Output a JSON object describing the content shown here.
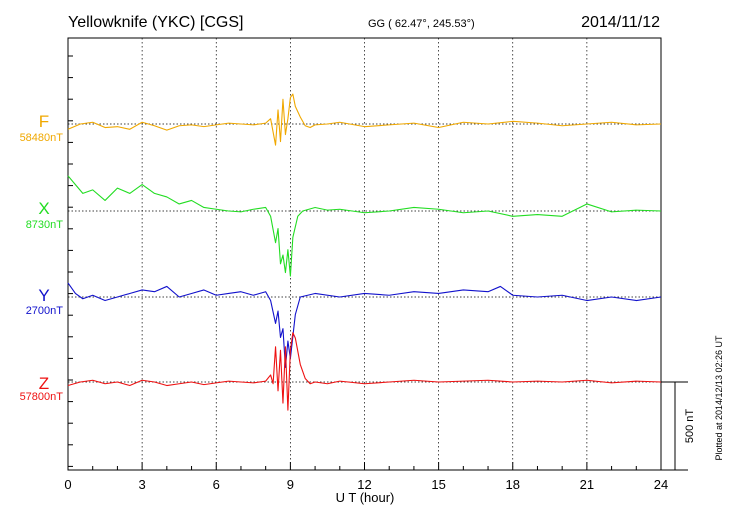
{
  "header": {
    "station": "Yellowknife (YKC)  [CGS]",
    "coords": "GG ( 62.47°, 245.53°)",
    "date": "2014/11/12"
  },
  "side_note": "Plotted at 2014/12/13 02:26 UT",
  "scale_bar": {
    "label": "500 nT",
    "value_nT": 500
  },
  "chart_data": {
    "type": "line",
    "xlabel": "U T (hour)",
    "xlim": [
      0,
      24
    ],
    "xticks": [
      "0",
      "3",
      "6",
      "9",
      "12",
      "15",
      "18",
      "21",
      "24"
    ],
    "grid": true,
    "colors": {
      "F": "#f0a800",
      "X": "#22dd22",
      "Y": "#1111cc",
      "Z": "#ee1111"
    },
    "series": [
      {
        "name": "F",
        "baseline_label": "58480nT",
        "baseline": 58480,
        "x": [
          0,
          0.5,
          1,
          1.5,
          2,
          2.5,
          3,
          3.5,
          4,
          4.5,
          5,
          5.5,
          6,
          6.5,
          7,
          7.5,
          8,
          8.2,
          8.4,
          8.5,
          8.6,
          8.7,
          8.8,
          8.9,
          9,
          9.1,
          9.2,
          9.4,
          9.6,
          9.8,
          10,
          10.5,
          11,
          12,
          13,
          14,
          15,
          16,
          17,
          18,
          19,
          20,
          21,
          22,
          23,
          24
        ],
        "values": [
          -30,
          0,
          10,
          -20,
          -15,
          -30,
          10,
          -10,
          -35,
          -10,
          -5,
          -15,
          -5,
          5,
          0,
          -5,
          5,
          30,
          -120,
          80,
          -100,
          140,
          -60,
          30,
          150,
          170,
          100,
          40,
          -10,
          -20,
          -5,
          0,
          10,
          -15,
          -5,
          5,
          -20,
          10,
          0,
          15,
          5,
          -10,
          0,
          10,
          -5,
          0
        ]
      },
      {
        "name": "X",
        "baseline_label": "8730nT",
        "baseline": 8730,
        "x": [
          0,
          0.3,
          0.6,
          1,
          1.5,
          2,
          2.5,
          3,
          3.5,
          4,
          4.5,
          5,
          5.5,
          6,
          6.5,
          7,
          7.5,
          8,
          8.2,
          8.4,
          8.5,
          8.6,
          8.7,
          8.8,
          8.9,
          9,
          9.1,
          9.3,
          9.5,
          10,
          10.5,
          11,
          12,
          13,
          14,
          15,
          16,
          17,
          18,
          19,
          20,
          21,
          22,
          23,
          24
        ],
        "values": [
          200,
          150,
          100,
          120,
          60,
          130,
          100,
          150,
          100,
          80,
          40,
          60,
          20,
          10,
          0,
          -5,
          10,
          20,
          -30,
          -180,
          -100,
          -300,
          -250,
          -350,
          -220,
          -370,
          -150,
          -30,
          0,
          20,
          5,
          10,
          -10,
          0,
          20,
          10,
          -10,
          0,
          -30,
          -20,
          -30,
          40,
          -5,
          5,
          0
        ]
      },
      {
        "name": "Y",
        "baseline_label": "2700nT",
        "baseline": 2700,
        "x": [
          0,
          0.3,
          0.6,
          1,
          1.5,
          2,
          2.5,
          3,
          3.5,
          4,
          4.5,
          5,
          5.5,
          6,
          6.5,
          7,
          7.5,
          8,
          8.2,
          8.4,
          8.5,
          8.6,
          8.7,
          8.8,
          8.9,
          9,
          9.2,
          9.4,
          10,
          11,
          12,
          13,
          14,
          15,
          16,
          17,
          17.5,
          18,
          19,
          20,
          21,
          22,
          23,
          24
        ],
        "values": [
          80,
          20,
          -10,
          10,
          -20,
          0,
          20,
          40,
          30,
          60,
          0,
          20,
          40,
          10,
          20,
          30,
          10,
          30,
          -20,
          -150,
          -80,
          -230,
          -180,
          -400,
          -250,
          -350,
          -100,
          0,
          20,
          0,
          20,
          10,
          30,
          20,
          40,
          30,
          60,
          10,
          0,
          10,
          -20,
          0,
          -20,
          0
        ]
      },
      {
        "name": "Z",
        "baseline_label": "57800nT",
        "baseline": 57800,
        "x": [
          0,
          0.5,
          1,
          1.5,
          2,
          2.5,
          3,
          3.5,
          4,
          4.5,
          5,
          5.5,
          6,
          6.5,
          7,
          7.5,
          8,
          8.2,
          8.3,
          8.4,
          8.5,
          8.6,
          8.7,
          8.8,
          8.9,
          9,
          9.1,
          9.2,
          9.4,
          9.6,
          9.8,
          10,
          10.5,
          11,
          12,
          13,
          14,
          15,
          16,
          17,
          18,
          19,
          20,
          21,
          22,
          23,
          24
        ],
        "values": [
          -20,
          0,
          10,
          -10,
          0,
          -20,
          10,
          0,
          -20,
          -10,
          0,
          -15,
          -5,
          5,
          0,
          -5,
          5,
          40,
          -10,
          200,
          -50,
          180,
          -120,
          200,
          -160,
          180,
          280,
          250,
          100,
          20,
          -10,
          0,
          -10,
          5,
          -10,
          0,
          10,
          0,
          5,
          10,
          0,
          5,
          0,
          10,
          -5,
          5,
          0
        ]
      }
    ]
  }
}
